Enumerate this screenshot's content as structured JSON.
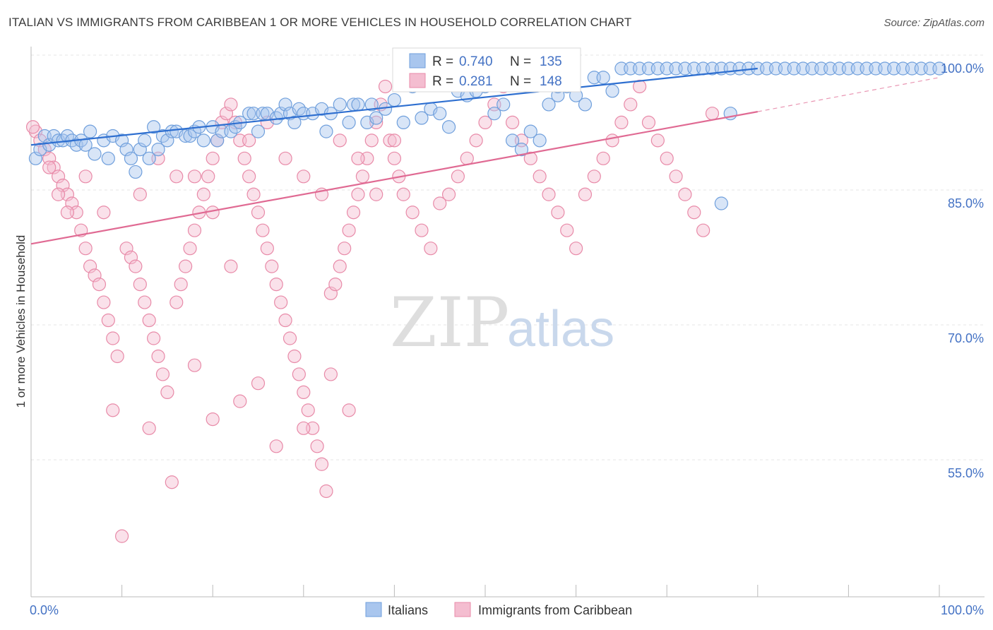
{
  "header": {
    "title": "ITALIAN VS IMMIGRANTS FROM CARIBBEAN 1 OR MORE VEHICLES IN HOUSEHOLD CORRELATION CHART",
    "source": "Source: ZipAtlas.com"
  },
  "watermark": {
    "zip": "ZIP",
    "atlas": "atlas"
  },
  "colors": {
    "blue": "#6f9fdc",
    "blue_fill": "#a9c6ee",
    "blue_line": "#2e6fd0",
    "pink": "#e88aa8",
    "pink_fill": "#f4bdd0",
    "pink_line": "#e06a93",
    "grid": "#e4e4e4",
    "tick_text": "#4472c4"
  },
  "legend_box": {
    "row1": {
      "r_label": "R = ",
      "r_value": "0.740",
      "n_label": "N = ",
      "n_value": "135"
    },
    "row2": {
      "r_label": "R = ",
      "r_value": "0.281",
      "n_label": "N = ",
      "n_value": "148"
    }
  },
  "bottom_legend": {
    "series1": "Italians",
    "series2": "Immigrants from Caribbean"
  },
  "chart_data": {
    "type": "scatter",
    "title": "ITALIAN VS IMMIGRANTS FROM CARIBBEAN 1 OR MORE VEHICLES IN HOUSEHOLD CORRELATION CHART",
    "xlabel": "",
    "ylabel": "1 or more Vehicles in Household",
    "xlim": [
      0,
      100
    ],
    "ylim": [
      40,
      102
    ],
    "x_tick_labels": [
      "0.0%",
      "100.0%"
    ],
    "y_tick_labels": [
      "100.0%",
      "85.0%",
      "70.0%",
      "55.0%"
    ],
    "y_ticks": [
      100,
      85,
      70,
      55
    ],
    "grid": true,
    "legend_position": "top-center",
    "series": [
      {
        "name": "Italians",
        "R": 0.74,
        "N": 135,
        "trend": {
          "x": [
            0,
            80
          ],
          "y": [
            91.5,
            100
          ]
        },
        "points": [
          [
            0.5,
            90
          ],
          [
            1,
            91
          ],
          [
            1.5,
            92.5
          ],
          [
            2,
            91.5
          ],
          [
            2.5,
            92.5
          ],
          [
            3,
            92
          ],
          [
            3.5,
            92
          ],
          [
            4,
            92.5
          ],
          [
            4.5,
            92
          ],
          [
            5,
            91.5
          ],
          [
            5.5,
            92
          ],
          [
            6,
            91.5
          ],
          [
            6.5,
            93
          ],
          [
            7,
            90.5
          ],
          [
            8,
            92
          ],
          [
            8.5,
            90
          ],
          [
            9,
            92.5
          ],
          [
            10,
            92
          ],
          [
            10.5,
            91
          ],
          [
            11,
            90
          ],
          [
            11.5,
            88.5
          ],
          [
            12,
            91
          ],
          [
            12.5,
            92
          ],
          [
            13,
            90
          ],
          [
            13.5,
            93.5
          ],
          [
            14,
            91
          ],
          [
            14.5,
            92.5
          ],
          [
            15,
            92
          ],
          [
            15.5,
            93
          ],
          [
            16,
            93
          ],
          [
            17,
            92.5
          ],
          [
            17.5,
            92.5
          ],
          [
            18,
            93
          ],
          [
            18.5,
            93.5
          ],
          [
            19,
            92
          ],
          [
            20,
            93.5
          ],
          [
            20.5,
            92
          ],
          [
            21,
            93
          ],
          [
            22,
            93
          ],
          [
            22.5,
            93.5
          ],
          [
            23,
            94
          ],
          [
            24,
            95
          ],
          [
            24.5,
            95
          ],
          [
            25,
            93
          ],
          [
            25.5,
            95
          ],
          [
            26,
            95
          ],
          [
            27,
            94.5
          ],
          [
            27.5,
            95
          ],
          [
            28,
            96
          ],
          [
            28.5,
            95
          ],
          [
            29,
            94
          ],
          [
            29.5,
            95.5
          ],
          [
            30,
            95
          ],
          [
            31,
            95
          ],
          [
            32,
            95.5
          ],
          [
            32.5,
            93
          ],
          [
            33,
            95
          ],
          [
            34,
            96
          ],
          [
            35,
            94
          ],
          [
            35.5,
            96
          ],
          [
            36,
            96
          ],
          [
            37,
            94
          ],
          [
            37.5,
            96
          ],
          [
            38,
            94.5
          ],
          [
            39,
            95.5
          ],
          [
            40,
            96.5
          ],
          [
            41,
            94
          ],
          [
            41.5,
            99
          ],
          [
            42,
            98
          ],
          [
            43,
            94.5
          ],
          [
            44,
            95.5
          ],
          [
            45,
            95
          ],
          [
            46,
            93.5
          ],
          [
            47,
            97.5
          ],
          [
            47.5,
            99
          ],
          [
            48,
            97
          ],
          [
            49,
            97.5
          ],
          [
            50,
            98
          ],
          [
            51,
            95
          ],
          [
            52,
            96
          ],
          [
            53,
            92
          ],
          [
            54,
            91
          ],
          [
            55,
            93
          ],
          [
            56,
            92
          ],
          [
            57,
            96
          ],
          [
            58,
            97
          ],
          [
            59,
            98
          ],
          [
            60,
            97
          ],
          [
            61,
            96
          ],
          [
            62,
            99
          ],
          [
            63,
            99
          ],
          [
            64,
            97.5
          ],
          [
            65,
            100
          ],
          [
            66,
            100
          ],
          [
            67,
            100
          ],
          [
            68,
            100
          ],
          [
            69,
            100
          ],
          [
            70,
            100
          ],
          [
            71,
            100
          ],
          [
            72,
            100
          ],
          [
            73,
            100
          ],
          [
            74,
            100
          ],
          [
            75,
            100
          ],
          [
            76,
            100
          ],
          [
            77,
            100
          ],
          [
            78,
            100
          ],
          [
            79,
            100
          ],
          [
            80,
            100
          ],
          [
            81,
            100
          ],
          [
            82,
            100
          ],
          [
            83,
            100
          ],
          [
            84,
            100
          ],
          [
            85,
            100
          ],
          [
            86,
            100
          ],
          [
            87,
            100
          ],
          [
            88,
            100
          ],
          [
            89,
            100
          ],
          [
            90,
            100
          ],
          [
            91,
            100
          ],
          [
            92,
            100
          ],
          [
            93,
            100
          ],
          [
            94,
            100
          ],
          [
            95,
            100
          ],
          [
            96,
            100
          ],
          [
            97,
            100
          ],
          [
            98,
            100
          ],
          [
            99,
            100
          ],
          [
            100,
            100
          ],
          [
            76,
            85
          ],
          [
            77,
            95
          ],
          [
            58,
            98
          ],
          [
            50,
            99.5
          ]
        ]
      },
      {
        "name": "Immigrants from Caribbean",
        "R": 0.281,
        "N": 148,
        "trend": {
          "x": [
            0,
            80
          ],
          "y": [
            80.5,
            95.2
          ],
          "dashed_to": [
            100,
            99
          ]
        },
        "points": [
          [
            0.5,
            93
          ],
          [
            1,
            92
          ],
          [
            1.5,
            91
          ],
          [
            2,
            90
          ],
          [
            2.5,
            89
          ],
          [
            3,
            88
          ],
          [
            3.5,
            87
          ],
          [
            4,
            86
          ],
          [
            4.5,
            85
          ],
          [
            5,
            84
          ],
          [
            5.5,
            82
          ],
          [
            6,
            80
          ],
          [
            6.5,
            78
          ],
          [
            7,
            77
          ],
          [
            7.5,
            76
          ],
          [
            8,
            74
          ],
          [
            8.5,
            72
          ],
          [
            9,
            70
          ],
          [
            9.5,
            68
          ],
          [
            10,
            48
          ],
          [
            10.5,
            80
          ],
          [
            11,
            79
          ],
          [
            11.5,
            78
          ],
          [
            12,
            76
          ],
          [
            12.5,
            74
          ],
          [
            13,
            72
          ],
          [
            13.5,
            70
          ],
          [
            14,
            68
          ],
          [
            14.5,
            66
          ],
          [
            15,
            64
          ],
          [
            15.5,
            54
          ],
          [
            16,
            74
          ],
          [
            16.5,
            76
          ],
          [
            17,
            78
          ],
          [
            17.5,
            80
          ],
          [
            18,
            82
          ],
          [
            18.5,
            84
          ],
          [
            19,
            86
          ],
          [
            19.5,
            88
          ],
          [
            20,
            90
          ],
          [
            20.5,
            92
          ],
          [
            21,
            94
          ],
          [
            21.5,
            95
          ],
          [
            22,
            96
          ],
          [
            22.5,
            94
          ],
          [
            23,
            92
          ],
          [
            23.5,
            90
          ],
          [
            24,
            88
          ],
          [
            24.5,
            86
          ],
          [
            25,
            84
          ],
          [
            25.5,
            82
          ],
          [
            26,
            80
          ],
          [
            26.5,
            78
          ],
          [
            27,
            76
          ],
          [
            27.5,
            74
          ],
          [
            28,
            72
          ],
          [
            28.5,
            70
          ],
          [
            29,
            68
          ],
          [
            29.5,
            66
          ],
          [
            30,
            64
          ],
          [
            30.5,
            62
          ],
          [
            31,
            60
          ],
          [
            31.5,
            58
          ],
          [
            32,
            56
          ],
          [
            32.5,
            53
          ],
          [
            33,
            75
          ],
          [
            33.5,
            76
          ],
          [
            34,
            78
          ],
          [
            34.5,
            80
          ],
          [
            35,
            82
          ],
          [
            35.5,
            84
          ],
          [
            36,
            86
          ],
          [
            36.5,
            88
          ],
          [
            37,
            90
          ],
          [
            37.5,
            92
          ],
          [
            38,
            94
          ],
          [
            38.5,
            96
          ],
          [
            39,
            98
          ],
          [
            39.5,
            92
          ],
          [
            40,
            90
          ],
          [
            40.5,
            88
          ],
          [
            41,
            86
          ],
          [
            42,
            84
          ],
          [
            43,
            82
          ],
          [
            44,
            80
          ],
          [
            45,
            85
          ],
          [
            46,
            86
          ],
          [
            47,
            88
          ],
          [
            48,
            90
          ],
          [
            49,
            92
          ],
          [
            50,
            94
          ],
          [
            51,
            96
          ],
          [
            52,
            98
          ],
          [
            53,
            94
          ],
          [
            54,
            92
          ],
          [
            55,
            90
          ],
          [
            56,
            88
          ],
          [
            57,
            86
          ],
          [
            58,
            84
          ],
          [
            59,
            82
          ],
          [
            60,
            80
          ],
          [
            61,
            86
          ],
          [
            62,
            88
          ],
          [
            63,
            90
          ],
          [
            64,
            92
          ],
          [
            65,
            94
          ],
          [
            66,
            96
          ],
          [
            67,
            98
          ],
          [
            68,
            94
          ],
          [
            69,
            92
          ],
          [
            70,
            90
          ],
          [
            71,
            88
          ],
          [
            72,
            86
          ],
          [
            73,
            84
          ],
          [
            74,
            82
          ],
          [
            75,
            95
          ],
          [
            2,
            89
          ],
          [
            3,
            86
          ],
          [
            4,
            84
          ],
          [
            6,
            88
          ],
          [
            8,
            84
          ],
          [
            12,
            86
          ],
          [
            14,
            90
          ],
          [
            16,
            88
          ],
          [
            18,
            88
          ],
          [
            20,
            84
          ],
          [
            22,
            78
          ],
          [
            24,
            92
          ],
          [
            26,
            94
          ],
          [
            28,
            90
          ],
          [
            30,
            88
          ],
          [
            32,
            86
          ],
          [
            34,
            92
          ],
          [
            36,
            90
          ],
          [
            38,
            86
          ],
          [
            40,
            92
          ],
          [
            9,
            62
          ],
          [
            13,
            60
          ],
          [
            20,
            61
          ],
          [
            25,
            65
          ],
          [
            30,
            60
          ],
          [
            35,
            62
          ],
          [
            18,
            67
          ],
          [
            23,
            63
          ],
          [
            27,
            58
          ],
          [
            33,
            66
          ],
          [
            0.2,
            93.5
          ]
        ]
      }
    ]
  }
}
